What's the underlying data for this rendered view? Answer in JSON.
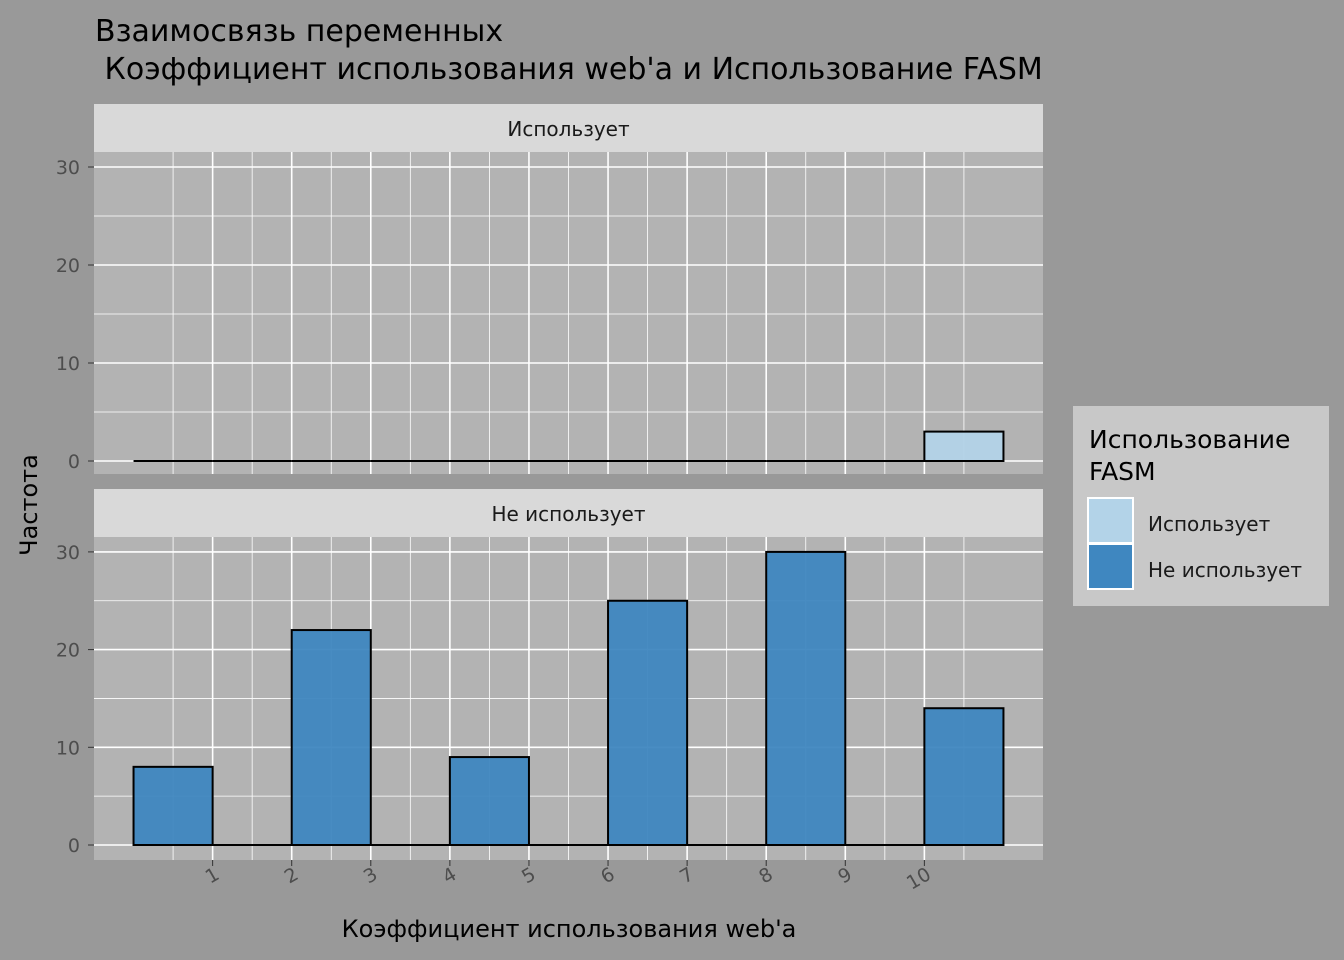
{
  "chart_data": {
    "type": "bar",
    "title_line1": "Взаимосвязь переменных",
    "title_line2": " Коэффициент использования web'a и Использование FASM",
    "xlabel": "Коэффициент использования web'a",
    "ylabel": "Частота",
    "x_ticks": [
      "1",
      "2",
      "3",
      "4",
      "5",
      "6",
      "7",
      "8",
      "9",
      "10"
    ],
    "y_ticks": [
      0,
      10,
      20,
      30
    ],
    "ylim": [
      0,
      32
    ],
    "legend": {
      "title_line1": "Использование",
      "title_line2": "FASM",
      "placement": "right",
      "entries": [
        {
          "label": "Использует",
          "color": "#b3d3e8"
        },
        {
          "label": "Не использует",
          "color": "#3f87c0"
        }
      ]
    },
    "panels": [
      {
        "strip": "Использует",
        "color": "#b3d3e8",
        "bins": [
          {
            "x": 0.5,
            "value": 0
          },
          {
            "x": 1.5,
            "value": 0
          },
          {
            "x": 2.5,
            "value": 0
          },
          {
            "x": 3.5,
            "value": 0
          },
          {
            "x": 4.5,
            "value": 0
          },
          {
            "x": 5.5,
            "value": 0
          },
          {
            "x": 6.5,
            "value": 0
          },
          {
            "x": 7.5,
            "value": 0
          },
          {
            "x": 8.5,
            "value": 0
          },
          {
            "x": 9.5,
            "value": 0
          },
          {
            "x": 10.5,
            "value": 3
          }
        ]
      },
      {
        "strip": "Не использует",
        "color": "#3f87c0",
        "bins": [
          {
            "x": 0.5,
            "value": 8
          },
          {
            "x": 1.5,
            "value": 0
          },
          {
            "x": 2.5,
            "value": 22
          },
          {
            "x": 3.5,
            "value": 0
          },
          {
            "x": 4.5,
            "value": 9
          },
          {
            "x": 5.5,
            "value": 0
          },
          {
            "x": 6.5,
            "value": 25
          },
          {
            "x": 7.5,
            "value": 0
          },
          {
            "x": 8.5,
            "value": 30
          },
          {
            "x": 9.5,
            "value": 0
          },
          {
            "x": 10.5,
            "value": 14
          }
        ]
      }
    ],
    "grid": true
  }
}
